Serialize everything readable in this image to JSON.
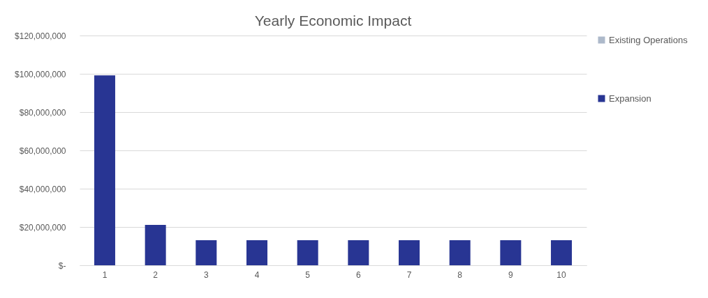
{
  "chart_data": {
    "type": "bar",
    "title": "Yearly Economic Impact",
    "categories": [
      "1",
      "2",
      "3",
      "4",
      "5",
      "6",
      "7",
      "8",
      "9",
      "10"
    ],
    "series": [
      {
        "name": "Existing Operations",
        "color": "#adb9ca",
        "values": [
          null,
          null,
          null,
          null,
          null,
          null,
          null,
          null,
          null,
          null
        ]
      },
      {
        "name": "Expansion",
        "color": "#283593",
        "values": [
          99200000,
          21100000,
          13100000,
          13100000,
          13100000,
          13100000,
          13100000,
          13100000,
          13100000,
          13100000
        ]
      }
    ],
    "ylim": [
      0,
      120000000
    ],
    "yticks": [
      {
        "value": 0,
        "label": "$-"
      },
      {
        "value": 20000000,
        "label": "$20,000,000"
      },
      {
        "value": 40000000,
        "label": "$40,000,000"
      },
      {
        "value": 60000000,
        "label": "$60,000,000"
      },
      {
        "value": 80000000,
        "label": "$80,000,000"
      },
      {
        "value": 100000000,
        "label": "$100,000,000"
      },
      {
        "value": 120000000,
        "label": "$120,000,000"
      }
    ],
    "grid": "y",
    "legend": "right"
  }
}
